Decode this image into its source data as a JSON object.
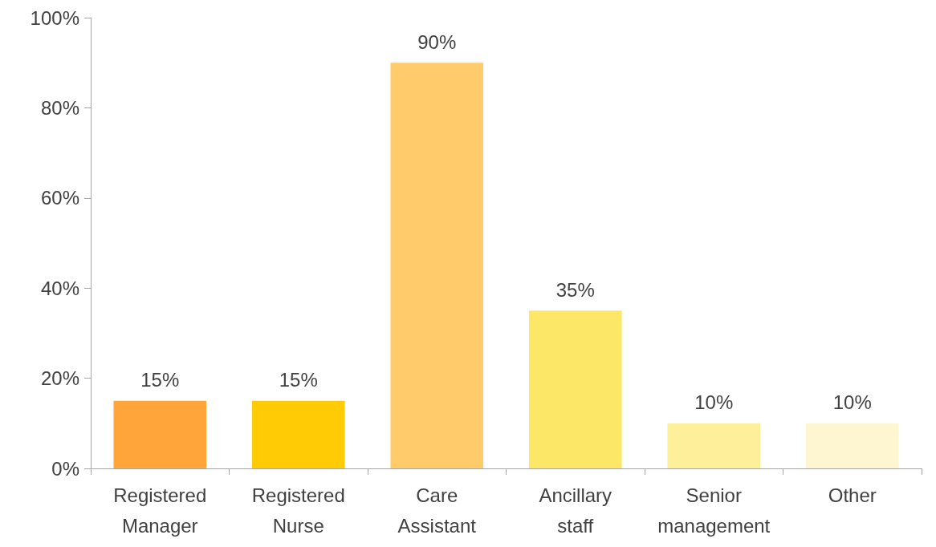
{
  "chart_data": {
    "type": "bar",
    "categories": [
      "Registered Manager",
      "Registered Nurse",
      "Care Assistant",
      "Ancillary staff",
      "Senior management",
      "Other"
    ],
    "values": [
      15,
      15,
      90,
      35,
      10,
      10
    ],
    "colors": [
      "#ffa53a",
      "#ffcb05",
      "#ffcb6b",
      "#fde766",
      "#fef09a",
      "#fef6d0"
    ],
    "value_labels": [
      "15%",
      "15%",
      "90%",
      "35%",
      "10%",
      "10%"
    ],
    "ylim": [
      0,
      100
    ],
    "yticks": [
      {
        "value": 0,
        "label": "0%"
      },
      {
        "value": 20,
        "label": "20%"
      },
      {
        "value": 40,
        "label": "40%"
      },
      {
        "value": 60,
        "label": "60%"
      },
      {
        "value": 80,
        "label": "80%"
      },
      {
        "value": 100,
        "label": "100%"
      }
    ],
    "grid": false
  }
}
